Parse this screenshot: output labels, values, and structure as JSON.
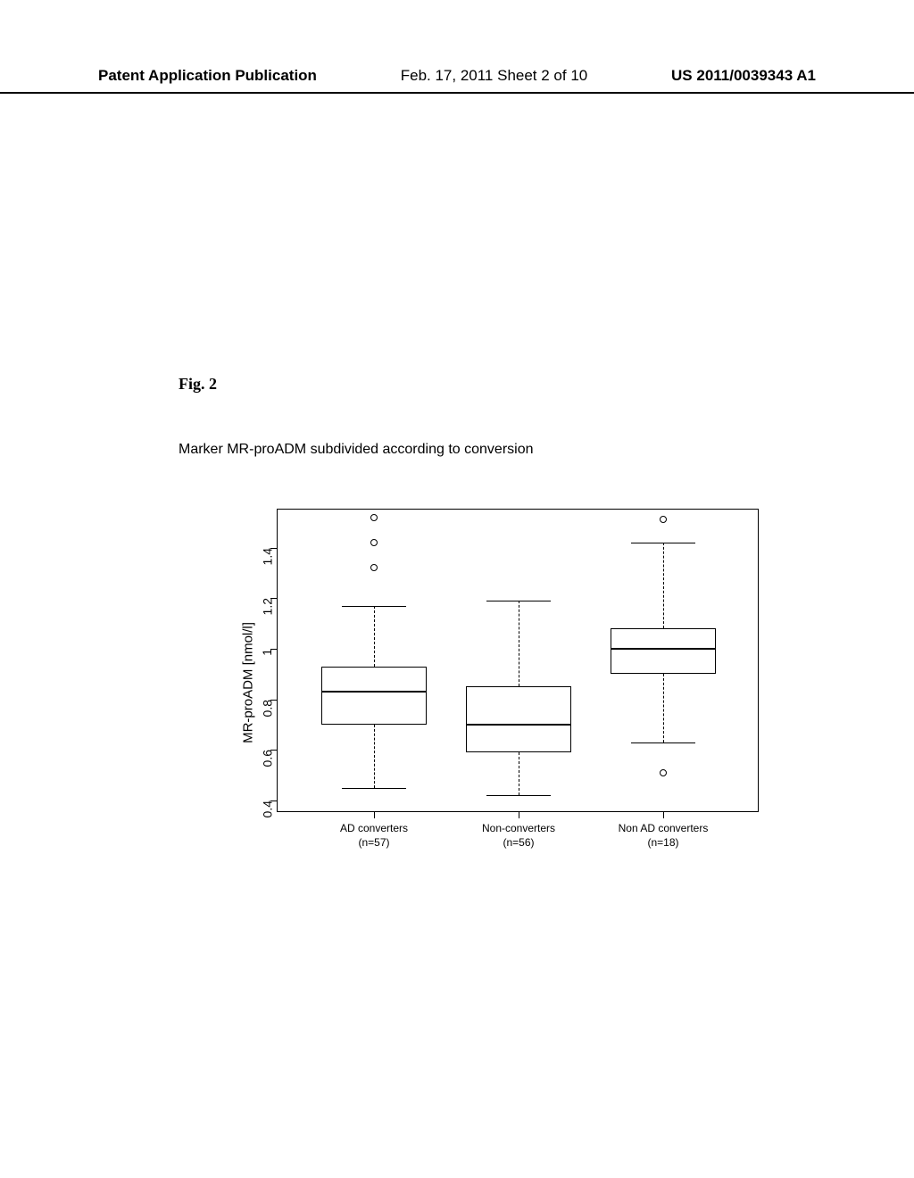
{
  "header": {
    "left": "Patent Application Publication",
    "center": "Feb. 17, 2011  Sheet 2 of 10",
    "right": "US 2011/0039343 A1"
  },
  "figure": {
    "label": "Fig. 2",
    "title": "Marker MR-proADM subdivided according to conversion"
  },
  "chart": {
    "type": "boxplot",
    "y_axis": {
      "label": "MR-proADM [nmol/l]",
      "min": 0.35,
      "max": 1.55,
      "ticks": [
        0.4,
        0.6,
        0.8,
        1.0,
        1.2,
        1.4
      ],
      "tick_labels": [
        "0.4",
        "0.6",
        "0.8",
        "1",
        "1.2",
        "1.4"
      ]
    },
    "x_axis": {
      "categories": [
        {
          "label": "AD converters",
          "sublabel": "(n=57)",
          "position": 0.2
        },
        {
          "label": "Non-converters",
          "sublabel": "(n=56)",
          "position": 0.5
        },
        {
          "label": "Non AD converters",
          "sublabel": "(n=18)",
          "position": 0.8
        }
      ]
    },
    "boxes": [
      {
        "x": 0.2,
        "q1": 0.7,
        "median": 0.83,
        "q3": 0.93,
        "whisker_low": 0.45,
        "whisker_high": 1.17,
        "outliers": [
          1.52,
          1.42,
          1.32
        ]
      },
      {
        "x": 0.5,
        "q1": 0.59,
        "median": 0.7,
        "q3": 0.85,
        "whisker_low": 0.42,
        "whisker_high": 1.19,
        "outliers": []
      },
      {
        "x": 0.8,
        "q1": 0.9,
        "median": 1.0,
        "q3": 1.08,
        "whisker_low": 0.63,
        "whisker_high": 1.42,
        "outliers": [
          1.51,
          0.51
        ]
      }
    ],
    "box_width": 0.22,
    "colors": {
      "box_border": "#000000",
      "median": "#000000",
      "whisker": "#000000",
      "outlier": "#000000",
      "background": "#ffffff"
    }
  }
}
